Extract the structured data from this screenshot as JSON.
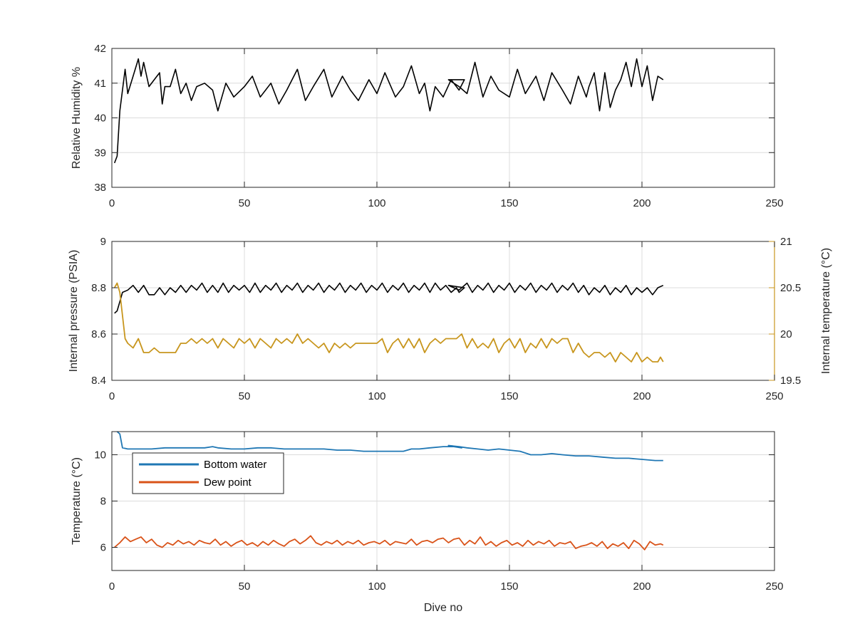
{
  "colors": {
    "black": "#000000",
    "gold": "#C8961E",
    "blue": "#1F77B4",
    "orange": "#D95319",
    "grid": "#dcdcdc",
    "axis": "#262626"
  },
  "chart_data": [
    {
      "type": "line",
      "xlabel": "",
      "ylabel": "Relative Humidity %",
      "xlim": [
        0,
        250
      ],
      "ylim": [
        38,
        42
      ],
      "xticks": [
        0,
        50,
        100,
        150,
        200,
        250
      ],
      "yticks": [
        38,
        39,
        40,
        41,
        42
      ],
      "grid": true,
      "series": [
        {
          "name": "",
          "color": "black",
          "x": [
            1,
            2,
            3,
            4,
            5,
            6,
            8,
            10,
            11,
            12,
            14,
            16,
            18,
            19,
            20,
            22,
            24,
            26,
            28,
            30,
            32,
            35,
            38,
            40,
            43,
            46,
            50,
            53,
            56,
            60,
            63,
            66,
            70,
            73,
            76,
            80,
            83,
            87,
            90,
            93,
            97,
            100,
            103,
            107,
            110,
            113,
            116,
            118,
            120,
            122,
            125,
            128,
            131,
            133,
            127,
            131,
            134,
            137,
            140,
            143,
            146,
            150,
            153,
            156,
            160,
            163,
            166,
            170,
            173,
            176,
            179,
            180,
            182,
            184,
            186,
            188,
            190,
            192,
            194,
            196,
            198,
            200,
            202,
            204,
            206,
            208
          ],
          "y": [
            38.7,
            38.9,
            40.2,
            40.8,
            41.4,
            40.7,
            41.2,
            41.7,
            41.2,
            41.6,
            40.9,
            41.1,
            41.3,
            40.4,
            40.9,
            40.9,
            41.4,
            40.7,
            41.0,
            40.5,
            40.9,
            41.0,
            40.8,
            40.2,
            41.0,
            40.6,
            40.9,
            41.2,
            40.6,
            41.0,
            40.4,
            40.8,
            41.4,
            40.5,
            40.9,
            41.4,
            40.6,
            41.2,
            40.8,
            40.5,
            41.1,
            40.7,
            41.3,
            40.6,
            40.9,
            41.5,
            40.7,
            41.0,
            40.2,
            40.9,
            40.6,
            41.1,
            40.8,
            41.1,
            41.1,
            40.9,
            40.7,
            41.6,
            40.6,
            41.2,
            40.8,
            40.6,
            41.4,
            40.7,
            41.2,
            40.5,
            41.3,
            40.8,
            40.4,
            41.2,
            40.6,
            40.9,
            41.3,
            40.2,
            41.3,
            40.3,
            40.8,
            41.1,
            41.6,
            40.9,
            41.7,
            40.9,
            41.5,
            40.5,
            41.2,
            41.1
          ]
        }
      ]
    },
    {
      "type": "line",
      "xlabel": "",
      "ylabel": "Internal pressure (PSIA)",
      "ylabel_right": "Internal temperature (°C)",
      "xlim": [
        0,
        250
      ],
      "ylim": [
        8.4,
        9
      ],
      "ylim_right": [
        19.5,
        21
      ],
      "xticks": [
        0,
        50,
        100,
        150,
        200,
        250
      ],
      "yticks": [
        8.4,
        8.6,
        8.8,
        9
      ],
      "yticks_right": [
        19.5,
        20,
        20.5,
        21
      ],
      "ytick_labels_right": [
        "19.5",
        "20",
        "20.5",
        "21"
      ],
      "grid": true,
      "series": [
        {
          "name": "",
          "axis": "left",
          "color": "black",
          "x": [
            1,
            2,
            3,
            4,
            6,
            8,
            10,
            12,
            14,
            16,
            18,
            20,
            22,
            24,
            26,
            28,
            30,
            32,
            34,
            36,
            38,
            40,
            42,
            44,
            46,
            48,
            50,
            52,
            54,
            56,
            58,
            60,
            62,
            64,
            66,
            68,
            70,
            72,
            74,
            76,
            78,
            80,
            82,
            84,
            86,
            88,
            90,
            92,
            94,
            96,
            98,
            100,
            102,
            104,
            106,
            108,
            110,
            112,
            114,
            116,
            118,
            120,
            122,
            124,
            126,
            128,
            130,
            131,
            133,
            127,
            131,
            134,
            136,
            138,
            140,
            142,
            144,
            146,
            148,
            150,
            152,
            154,
            156,
            158,
            160,
            162,
            164,
            166,
            168,
            170,
            172,
            174,
            176,
            178,
            180,
            182,
            184,
            186,
            188,
            190,
            192,
            194,
            196,
            198,
            200,
            202,
            204,
            206,
            208
          ],
          "y": [
            8.69,
            8.7,
            8.74,
            8.78,
            8.79,
            8.81,
            8.78,
            8.81,
            8.77,
            8.77,
            8.8,
            8.77,
            8.8,
            8.78,
            8.81,
            8.78,
            8.81,
            8.79,
            8.82,
            8.78,
            8.81,
            8.78,
            8.82,
            8.78,
            8.81,
            8.79,
            8.81,
            8.78,
            8.82,
            8.78,
            8.81,
            8.79,
            8.82,
            8.78,
            8.81,
            8.79,
            8.82,
            8.78,
            8.81,
            8.79,
            8.82,
            8.78,
            8.81,
            8.79,
            8.82,
            8.78,
            8.81,
            8.79,
            8.82,
            8.78,
            8.81,
            8.79,
            8.82,
            8.78,
            8.81,
            8.79,
            8.82,
            8.78,
            8.81,
            8.79,
            8.82,
            8.78,
            8.82,
            8.79,
            8.81,
            8.78,
            8.8,
            8.78,
            8.8,
            8.81,
            8.79,
            8.82,
            8.78,
            8.81,
            8.79,
            8.82,
            8.78,
            8.81,
            8.79,
            8.82,
            8.78,
            8.81,
            8.79,
            8.82,
            8.78,
            8.81,
            8.79,
            8.82,
            8.78,
            8.81,
            8.79,
            8.82,
            8.78,
            8.81,
            8.77,
            8.8,
            8.78,
            8.81,
            8.77,
            8.8,
            8.78,
            8.81,
            8.77,
            8.8,
            8.78,
            8.8,
            8.77,
            8.8,
            8.81
          ]
        },
        {
          "name": "",
          "axis": "right",
          "color": "gold",
          "x": [
            1,
            2,
            3,
            4,
            5,
            6,
            8,
            10,
            12,
            14,
            16,
            18,
            20,
            22,
            24,
            26,
            28,
            30,
            32,
            34,
            36,
            38,
            40,
            42,
            44,
            46,
            48,
            50,
            52,
            54,
            56,
            58,
            60,
            62,
            64,
            66,
            68,
            70,
            72,
            74,
            76,
            78,
            80,
            82,
            84,
            86,
            88,
            90,
            92,
            94,
            96,
            98,
            100,
            102,
            104,
            106,
            108,
            110,
            112,
            114,
            116,
            118,
            120,
            122,
            124,
            126,
            128,
            130,
            132,
            134,
            136,
            138,
            140,
            142,
            144,
            146,
            148,
            150,
            152,
            154,
            156,
            158,
            160,
            162,
            164,
            166,
            168,
            170,
            172,
            174,
            176,
            178,
            180,
            182,
            184,
            186,
            188,
            190,
            192,
            194,
            196,
            198,
            200,
            202,
            204,
            206,
            207,
            208
          ],
          "y": [
            20.5,
            20.55,
            20.45,
            20.2,
            19.95,
            19.9,
            19.85,
            19.95,
            19.8,
            19.8,
            19.85,
            19.8,
            19.8,
            19.8,
            19.8,
            19.9,
            19.9,
            19.95,
            19.9,
            19.95,
            19.9,
            19.95,
            19.85,
            19.95,
            19.9,
            19.85,
            19.95,
            19.9,
            19.95,
            19.85,
            19.95,
            19.9,
            19.85,
            19.95,
            19.9,
            19.95,
            19.9,
            20.0,
            19.9,
            19.95,
            19.9,
            19.85,
            19.9,
            19.8,
            19.9,
            19.85,
            19.9,
            19.85,
            19.9,
            19.9,
            19.9,
            19.9,
            19.9,
            19.95,
            19.8,
            19.9,
            19.95,
            19.85,
            19.95,
            19.85,
            19.95,
            19.8,
            19.9,
            19.95,
            19.9,
            19.95,
            19.95,
            19.95,
            20.0,
            19.85,
            19.95,
            19.85,
            19.9,
            19.85,
            19.95,
            19.8,
            19.9,
            19.95,
            19.85,
            19.95,
            19.8,
            19.9,
            19.85,
            19.95,
            19.85,
            19.95,
            19.9,
            19.95,
            19.95,
            19.8,
            19.9,
            19.8,
            19.75,
            19.8,
            19.8,
            19.75,
            19.8,
            19.7,
            19.8,
            19.75,
            19.7,
            19.8,
            19.7,
            19.75,
            19.7,
            19.7,
            19.75,
            19.7
          ]
        }
      ]
    },
    {
      "type": "line",
      "xlabel": "Dive no",
      "ylabel": "Temperature (°C)",
      "xlim": [
        0,
        250
      ],
      "ylim": [
        5,
        11
      ],
      "xticks": [
        0,
        50,
        100,
        150,
        200,
        250
      ],
      "yticks": [
        6,
        8,
        10
      ],
      "grid": true,
      "legend": "top-left",
      "series": [
        {
          "name": "Bottom water",
          "color": "blue",
          "x": [
            2,
            3,
            4,
            6,
            10,
            15,
            20,
            25,
            30,
            35,
            38,
            40,
            45,
            50,
            55,
            60,
            65,
            70,
            75,
            80,
            85,
            90,
            95,
            100,
            105,
            110,
            113,
            116,
            120,
            125,
            129,
            132,
            127,
            131,
            134,
            138,
            142,
            146,
            150,
            154,
            158,
            162,
            166,
            170,
            175,
            180,
            185,
            190,
            195,
            200,
            205,
            208
          ],
          "y": [
            11.0,
            10.9,
            10.3,
            10.25,
            10.25,
            10.25,
            10.3,
            10.3,
            10.3,
            10.3,
            10.35,
            10.3,
            10.25,
            10.25,
            10.3,
            10.3,
            10.25,
            10.25,
            10.25,
            10.25,
            10.2,
            10.2,
            10.15,
            10.15,
            10.15,
            10.15,
            10.25,
            10.25,
            10.3,
            10.35,
            10.35,
            10.3,
            10.4,
            10.35,
            10.3,
            10.25,
            10.2,
            10.25,
            10.2,
            10.15,
            10.0,
            10.0,
            10.05,
            10.0,
            9.95,
            9.95,
            9.9,
            9.85,
            9.85,
            9.8,
            9.75,
            9.75
          ]
        },
        {
          "name": "Dew point",
          "color": "orange",
          "x": [
            1,
            3,
            5,
            7,
            9,
            11,
            13,
            15,
            17,
            19,
            21,
            23,
            25,
            27,
            29,
            31,
            33,
            35,
            37,
            39,
            41,
            43,
            45,
            47,
            49,
            51,
            53,
            55,
            57,
            59,
            61,
            63,
            65,
            67,
            69,
            71,
            73,
            75,
            77,
            79,
            81,
            83,
            85,
            87,
            89,
            91,
            93,
            95,
            97,
            99,
            101,
            103,
            105,
            107,
            109,
            111,
            113,
            115,
            117,
            119,
            121,
            123,
            125,
            127,
            129,
            131,
            133,
            135,
            137,
            139,
            141,
            143,
            145,
            147,
            149,
            151,
            153,
            155,
            157,
            159,
            161,
            163,
            165,
            167,
            169,
            171,
            173,
            175,
            177,
            179,
            181,
            183,
            185,
            187,
            189,
            191,
            193,
            195,
            197,
            199,
            201,
            203,
            205,
            207,
            208
          ],
          "y": [
            6.0,
            6.2,
            6.45,
            6.25,
            6.35,
            6.45,
            6.2,
            6.35,
            6.1,
            6.0,
            6.2,
            6.1,
            6.3,
            6.15,
            6.25,
            6.1,
            6.3,
            6.2,
            6.15,
            6.35,
            6.1,
            6.25,
            6.05,
            6.2,
            6.3,
            6.1,
            6.2,
            6.05,
            6.25,
            6.1,
            6.3,
            6.15,
            6.05,
            6.25,
            6.35,
            6.15,
            6.3,
            6.5,
            6.2,
            6.1,
            6.25,
            6.15,
            6.3,
            6.1,
            6.25,
            6.15,
            6.3,
            6.1,
            6.2,
            6.25,
            6.15,
            6.3,
            6.1,
            6.25,
            6.2,
            6.15,
            6.35,
            6.1,
            6.25,
            6.3,
            6.2,
            6.35,
            6.4,
            6.2,
            6.35,
            6.4,
            6.1,
            6.3,
            6.15,
            6.45,
            6.1,
            6.25,
            6.05,
            6.2,
            6.3,
            6.1,
            6.2,
            6.05,
            6.3,
            6.1,
            6.25,
            6.15,
            6.3,
            6.05,
            6.2,
            6.15,
            6.25,
            5.95,
            6.05,
            6.1,
            6.2,
            6.05,
            6.25,
            5.95,
            6.15,
            6.05,
            6.2,
            5.95,
            6.3,
            6.15,
            5.9,
            6.25,
            6.1,
            6.15,
            6.1
          ]
        }
      ]
    }
  ]
}
